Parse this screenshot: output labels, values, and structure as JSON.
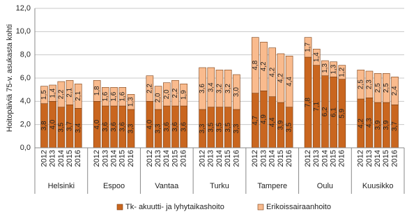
{
  "chart_data": {
    "type": "stacked-bar",
    "y_label": "Hoitopäiviä 75-v. asukasta kohti",
    "groups": [
      {
        "name": "Helsinki",
        "categories": [
          "2012",
          "2013",
          "2014",
          "2015",
          "2016"
        ]
      },
      {
        "name": "Espoo",
        "categories": [
          "2012",
          "2013",
          "2014",
          "2015",
          "2016"
        ]
      },
      {
        "name": "Vantaa",
        "categories": [
          "2012",
          "2013",
          "2014",
          "2015",
          "2016"
        ]
      },
      {
        "name": "Turku",
        "categories": [
          "2012",
          "2013",
          "2014",
          "2015",
          "2016"
        ]
      },
      {
        "name": "Tampere",
        "categories": [
          "2012",
          "2013",
          "2014",
          "2015",
          "2016"
        ]
      },
      {
        "name": "Oulu",
        "categories": [
          "2012",
          "2013",
          "2014",
          "2015",
          "2016"
        ]
      },
      {
        "name": "Kuusikko",
        "categories": [
          "2012",
          "2013",
          "2014",
          "2015",
          "2016"
        ]
      }
    ],
    "series": [
      {
        "name": "Tk- akuutti- ja lyhytaikashoito",
        "color": "#c9661f",
        "values": [
          3.8,
          4.0,
          3.5,
          3.7,
          3.4,
          4.0,
          3.6,
          3.6,
          3.6,
          3.3,
          4.0,
          3.3,
          3.6,
          3.6,
          3.6,
          3.3,
          3.5,
          3.5,
          3.5,
          3.3,
          4.7,
          4.9,
          4.4,
          3.9,
          3.5,
          7.8,
          7.1,
          6.2,
          6.1,
          5.9,
          4.2,
          4.3,
          3.9,
          3.9,
          3.7
        ],
        "value_labels": [
          "3,8",
          "4,0",
          "3,5",
          "3,7",
          "3,4",
          "4,0",
          "3,6",
          "3,6",
          "3,6",
          "3,3",
          "4,0",
          "3,3",
          "3,6",
          "3,6",
          "3,6",
          "3,3",
          "3,5",
          "3,5",
          "3,5",
          "3,3",
          "4,7",
          "4,9",
          "4,4",
          "3,9",
          "3,5",
          "7,8",
          "7,1",
          "6,2",
          "6,1",
          "5,9",
          "4,2",
          "4,3",
          "3,9",
          "3,9",
          "3,7"
        ]
      },
      {
        "name": "Erikoissairaanhoito",
        "color": "#f9bb8e",
        "values": [
          1.5,
          1.4,
          2.2,
          2.1,
          2.1,
          1.8,
          1.6,
          1.6,
          1.6,
          1.3,
          2.2,
          2.0,
          2.0,
          2.2,
          1.9,
          3.6,
          3.4,
          3.2,
          3.2,
          3.0,
          4.8,
          4.2,
          4.2,
          4.2,
          4.4,
          1.7,
          1.4,
          1.3,
          1.3,
          1.2,
          2.5,
          2.3,
          2.5,
          2.5,
          2.4
        ],
        "value_labels": [
          "1,5",
          "1,4",
          "2,2",
          "2,1",
          "2,1",
          "1,8",
          "1,6",
          "1,6",
          "1,6",
          "1,3",
          "2,2",
          "2,0",
          "2,0",
          "2,2",
          "1,9",
          "3,6",
          "3,4",
          "3,2",
          "3,2",
          "3,0",
          "4,8",
          "4,2",
          "4,2",
          "4,2",
          "4,4",
          "1,7",
          "1,4",
          "1,3",
          "1,3",
          "1,2",
          "2,5",
          "2,3",
          "2,5",
          "2,5",
          "2,4"
        ]
      }
    ],
    "ylim": [
      0,
      12
    ],
    "yticks": [
      {
        "value": 0,
        "label": "0,0"
      },
      {
        "value": 2,
        "label": "2,0"
      },
      {
        "value": 4,
        "label": "4,0"
      },
      {
        "value": 6,
        "label": "6,0"
      },
      {
        "value": 8,
        "label": "8,0"
      },
      {
        "value": 10,
        "label": "10,0"
      },
      {
        "value": 12,
        "label": "12,0"
      }
    ],
    "grid": true,
    "legend": "bottom"
  }
}
